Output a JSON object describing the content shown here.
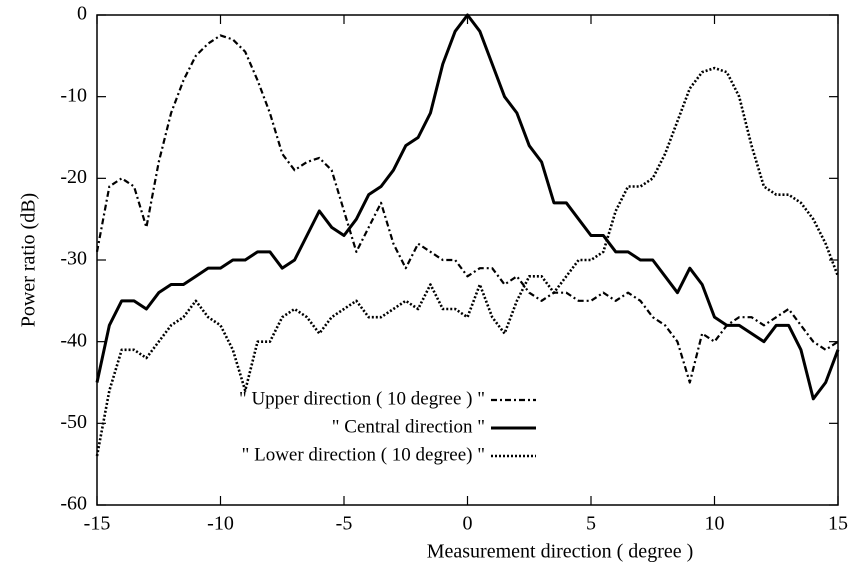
{
  "chart_data": {
    "type": "line",
    "xlabel": "Measurement direction ( degree )",
    "ylabel": "Power ratio (dB)",
    "x": [
      -15,
      -14.5,
      -14,
      -13.5,
      -13,
      -12.5,
      -12,
      -11.5,
      -11,
      -10.5,
      -10,
      -9.5,
      -9,
      -8.5,
      -8,
      -7.5,
      -7,
      -6.5,
      -6,
      -5.5,
      -5,
      -4.5,
      -4,
      -3.5,
      -3,
      -2.5,
      -2,
      -1.5,
      -1,
      -0.5,
      0,
      0.5,
      1,
      1.5,
      2,
      2.5,
      3,
      3.5,
      4,
      4.5,
      5,
      5.5,
      6,
      6.5,
      7,
      7.5,
      8,
      8.5,
      9,
      9.5,
      10,
      10.5,
      11,
      11.5,
      12,
      12.5,
      13,
      13.5,
      14,
      14.5,
      15
    ],
    "series": [
      {
        "name": "\" Upper direction ( 10 degree ) \"",
        "color": "#000000",
        "dash": "6,3,2,3",
        "width": 2.2,
        "values": [
          -29,
          -21,
          -20,
          -21,
          -26,
          -18,
          -12,
          -8,
          -5,
          -3.5,
          -2.5,
          -3,
          -4.5,
          -8,
          -12,
          -17,
          -19,
          -18,
          -17.5,
          -19,
          -24,
          -29,
          -26,
          -23,
          -28,
          -31,
          -28,
          -29,
          -30,
          -30,
          -32,
          -31,
          -31,
          -33,
          -32,
          -34,
          -35,
          -34,
          -34,
          -35,
          -35,
          -34,
          -35,
          -34,
          -35,
          -37,
          -38,
          -40,
          -45,
          -39,
          -40,
          -38,
          -37,
          -37,
          -38,
          -37,
          -36,
          -38,
          -40,
          -41,
          -40
        ]
      },
      {
        "name": "\" Central direction \"",
        "color": "#000000",
        "dash": "none",
        "width": 3,
        "values": [
          -45,
          -38,
          -35,
          -35,
          -36,
          -34,
          -33,
          -33,
          -32,
          -31,
          -31,
          -30,
          -30,
          -29,
          -29,
          -31,
          -30,
          -27,
          -24,
          -26,
          -27,
          -25,
          -22,
          -21,
          -19,
          -16,
          -15,
          -12,
          -6,
          -2,
          0,
          -2,
          -6,
          -10,
          -12,
          -16,
          -18,
          -23,
          -23,
          -25,
          -27,
          -27,
          -29,
          -29,
          -30,
          -30,
          -32,
          -34,
          -31,
          -33,
          -37,
          -38,
          -38,
          -39,
          -40,
          -38,
          -38,
          -41,
          -47,
          -45,
          -41
        ]
      },
      {
        "name": "\" Lower direction ( 10 degree) \"",
        "color": "#000000",
        "dash": "2,2",
        "width": 2.6,
        "values": [
          -54,
          -46,
          -41,
          -41,
          -42,
          -40,
          -38,
          -37,
          -35,
          -37,
          -38,
          -41,
          -46,
          -40,
          -40,
          -37,
          -36,
          -37,
          -39,
          -37,
          -36,
          -35,
          -37,
          -37,
          -36,
          -35,
          -36,
          -33,
          -36,
          -36,
          -37,
          -33,
          -37,
          -39,
          -35,
          -32,
          -32,
          -34,
          -32,
          -30,
          -30,
          -29,
          -24,
          -21,
          -21,
          -20,
          -17,
          -13,
          -9,
          -7,
          -6.5,
          -7,
          -10,
          -16,
          -21,
          -22,
          -22,
          -23,
          -25,
          -28,
          -32
        ]
      }
    ],
    "xlim": [
      -15,
      15
    ],
    "xticks": [
      -15,
      -10,
      -5,
      0,
      5,
      10,
      15
    ],
    "ylim": [
      -60,
      0
    ],
    "yticks": [
      -60,
      -50,
      -40,
      -30,
      -20,
      -10,
      0
    ]
  }
}
